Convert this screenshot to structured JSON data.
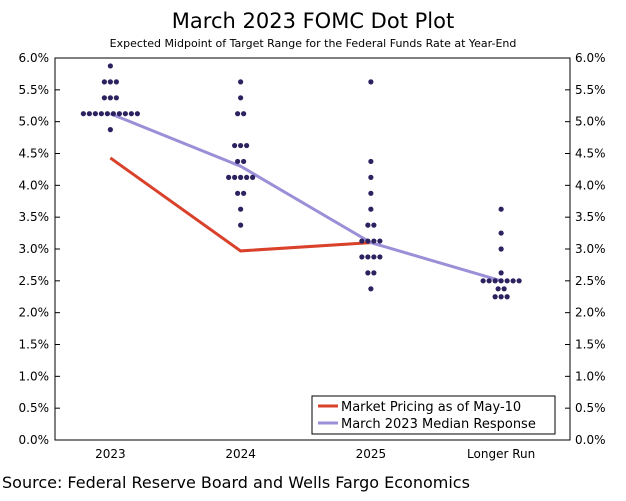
{
  "chart_data": {
    "type": "scatter",
    "title": "March 2023 FOMC Dot Plot",
    "subtitle": "Expected Midpoint of Target Range for the Federal Funds Rate at Year-End",
    "source": "Source: Federal Reserve Board and Wells Fargo Economics",
    "categories": [
      "2023",
      "2024",
      "2025",
      "Longer Run"
    ],
    "ylim": [
      0,
      6
    ],
    "yticks": [
      "0.0%",
      "0.5%",
      "1.0%",
      "1.5%",
      "2.0%",
      "2.5%",
      "3.0%",
      "3.5%",
      "4.0%",
      "4.5%",
      "5.0%",
      "5.5%",
      "6.0%"
    ],
    "dots": [
      [
        [
          5.875,
          1
        ],
        [
          5.625,
          3
        ],
        [
          5.375,
          3
        ],
        [
          5.125,
          10
        ],
        [
          4.875,
          1
        ]
      ],
      [
        [
          5.625,
          1
        ],
        [
          5.375,
          1
        ],
        [
          5.125,
          2
        ],
        [
          4.625,
          3
        ],
        [
          4.375,
          2
        ],
        [
          4.125,
          5
        ],
        [
          3.875,
          2
        ],
        [
          3.625,
          1
        ],
        [
          3.375,
          1
        ]
      ],
      [
        [
          5.625,
          1
        ],
        [
          4.375,
          1
        ],
        [
          4.125,
          1
        ],
        [
          3.875,
          1
        ],
        [
          3.625,
          1
        ],
        [
          3.375,
          2
        ],
        [
          3.125,
          4
        ],
        [
          2.875,
          4
        ],
        [
          2.625,
          2
        ],
        [
          2.375,
          1
        ]
      ],
      [
        [
          3.625,
          1
        ],
        [
          3.25,
          1
        ],
        [
          3.0,
          1
        ],
        [
          2.625,
          1
        ],
        [
          2.5,
          7
        ],
        [
          2.375,
          2
        ],
        [
          2.25,
          3
        ]
      ]
    ],
    "series": [
      {
        "name": "Market Pricing as of May-10",
        "color": "#d9412b",
        "values": [
          4.43,
          2.97,
          3.1,
          null
        ]
      },
      {
        "name": "March 2023 Median Response",
        "color": "#9b8fd8",
        "values": [
          5.125,
          4.3,
          3.1,
          2.5
        ]
      }
    ],
    "dot_color": "#2b2260",
    "legend": "bottom-right",
    "grid": false
  }
}
